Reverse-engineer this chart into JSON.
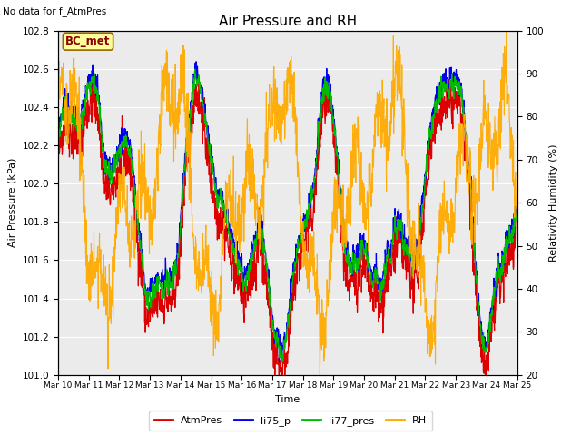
{
  "title": "Air Pressure and RH",
  "top_left_note": "No data for f_AtmPres",
  "box_label": "BC_met",
  "xlabel": "Time",
  "ylabel_left": "Air Pressure (kPa)",
  "ylabel_right": "Relativity Humidity (%)",
  "ylim_left": [
    101.0,
    102.8
  ],
  "ylim_right": [
    20,
    100
  ],
  "yticks_left": [
    101.0,
    101.2,
    101.4,
    101.6,
    101.8,
    102.0,
    102.2,
    102.4,
    102.6,
    102.8
  ],
  "yticks_right": [
    20,
    30,
    40,
    50,
    60,
    70,
    80,
    90,
    100
  ],
  "xtick_labels": [
    "Mar 10",
    "Mar 11",
    "Mar 12",
    "Mar 13",
    "Mar 14",
    "Mar 15",
    "Mar 16",
    "Mar 17",
    "Mar 18",
    "Mar 19",
    "Mar 20",
    "Mar 21",
    "Mar 22",
    "Mar 23",
    "Mar 24",
    "Mar 25"
  ],
  "line_colors": {
    "AtmPres": "#dd0000",
    "li75_p": "#0000ee",
    "li77_pres": "#00bb00",
    "RH": "#ffaa00"
  },
  "plot_bg_color": "#ebebeb",
  "n_pts": 1500
}
